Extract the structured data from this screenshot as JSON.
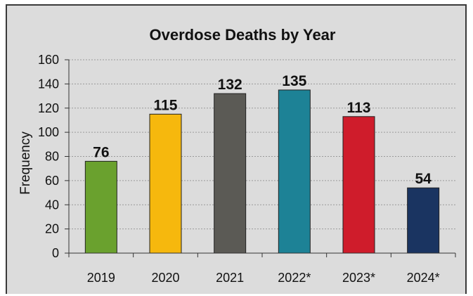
{
  "chart_data": {
    "type": "bar",
    "title": "Overdose Deaths by Year",
    "xlabel": "",
    "ylabel": "Frequency",
    "categories": [
      "2019",
      "2020",
      "2021",
      "2022*",
      "2023*",
      "2024*"
    ],
    "values": [
      76,
      115,
      132,
      135,
      113,
      54
    ],
    "data_labels": [
      "76",
      "115",
      "132",
      "135",
      "113",
      "54"
    ],
    "ylim": [
      0,
      160
    ],
    "yticks": [
      "0",
      "20",
      "40",
      "60",
      "80",
      "100",
      "120",
      "140",
      "160"
    ],
    "grid": true,
    "legend": "none",
    "colors": [
      "#6aa12e",
      "#f6b80d",
      "#5b5a55",
      "#1d8296",
      "#cf1c2b",
      "#1a3461"
    ],
    "background": "#dcdcdc"
  }
}
